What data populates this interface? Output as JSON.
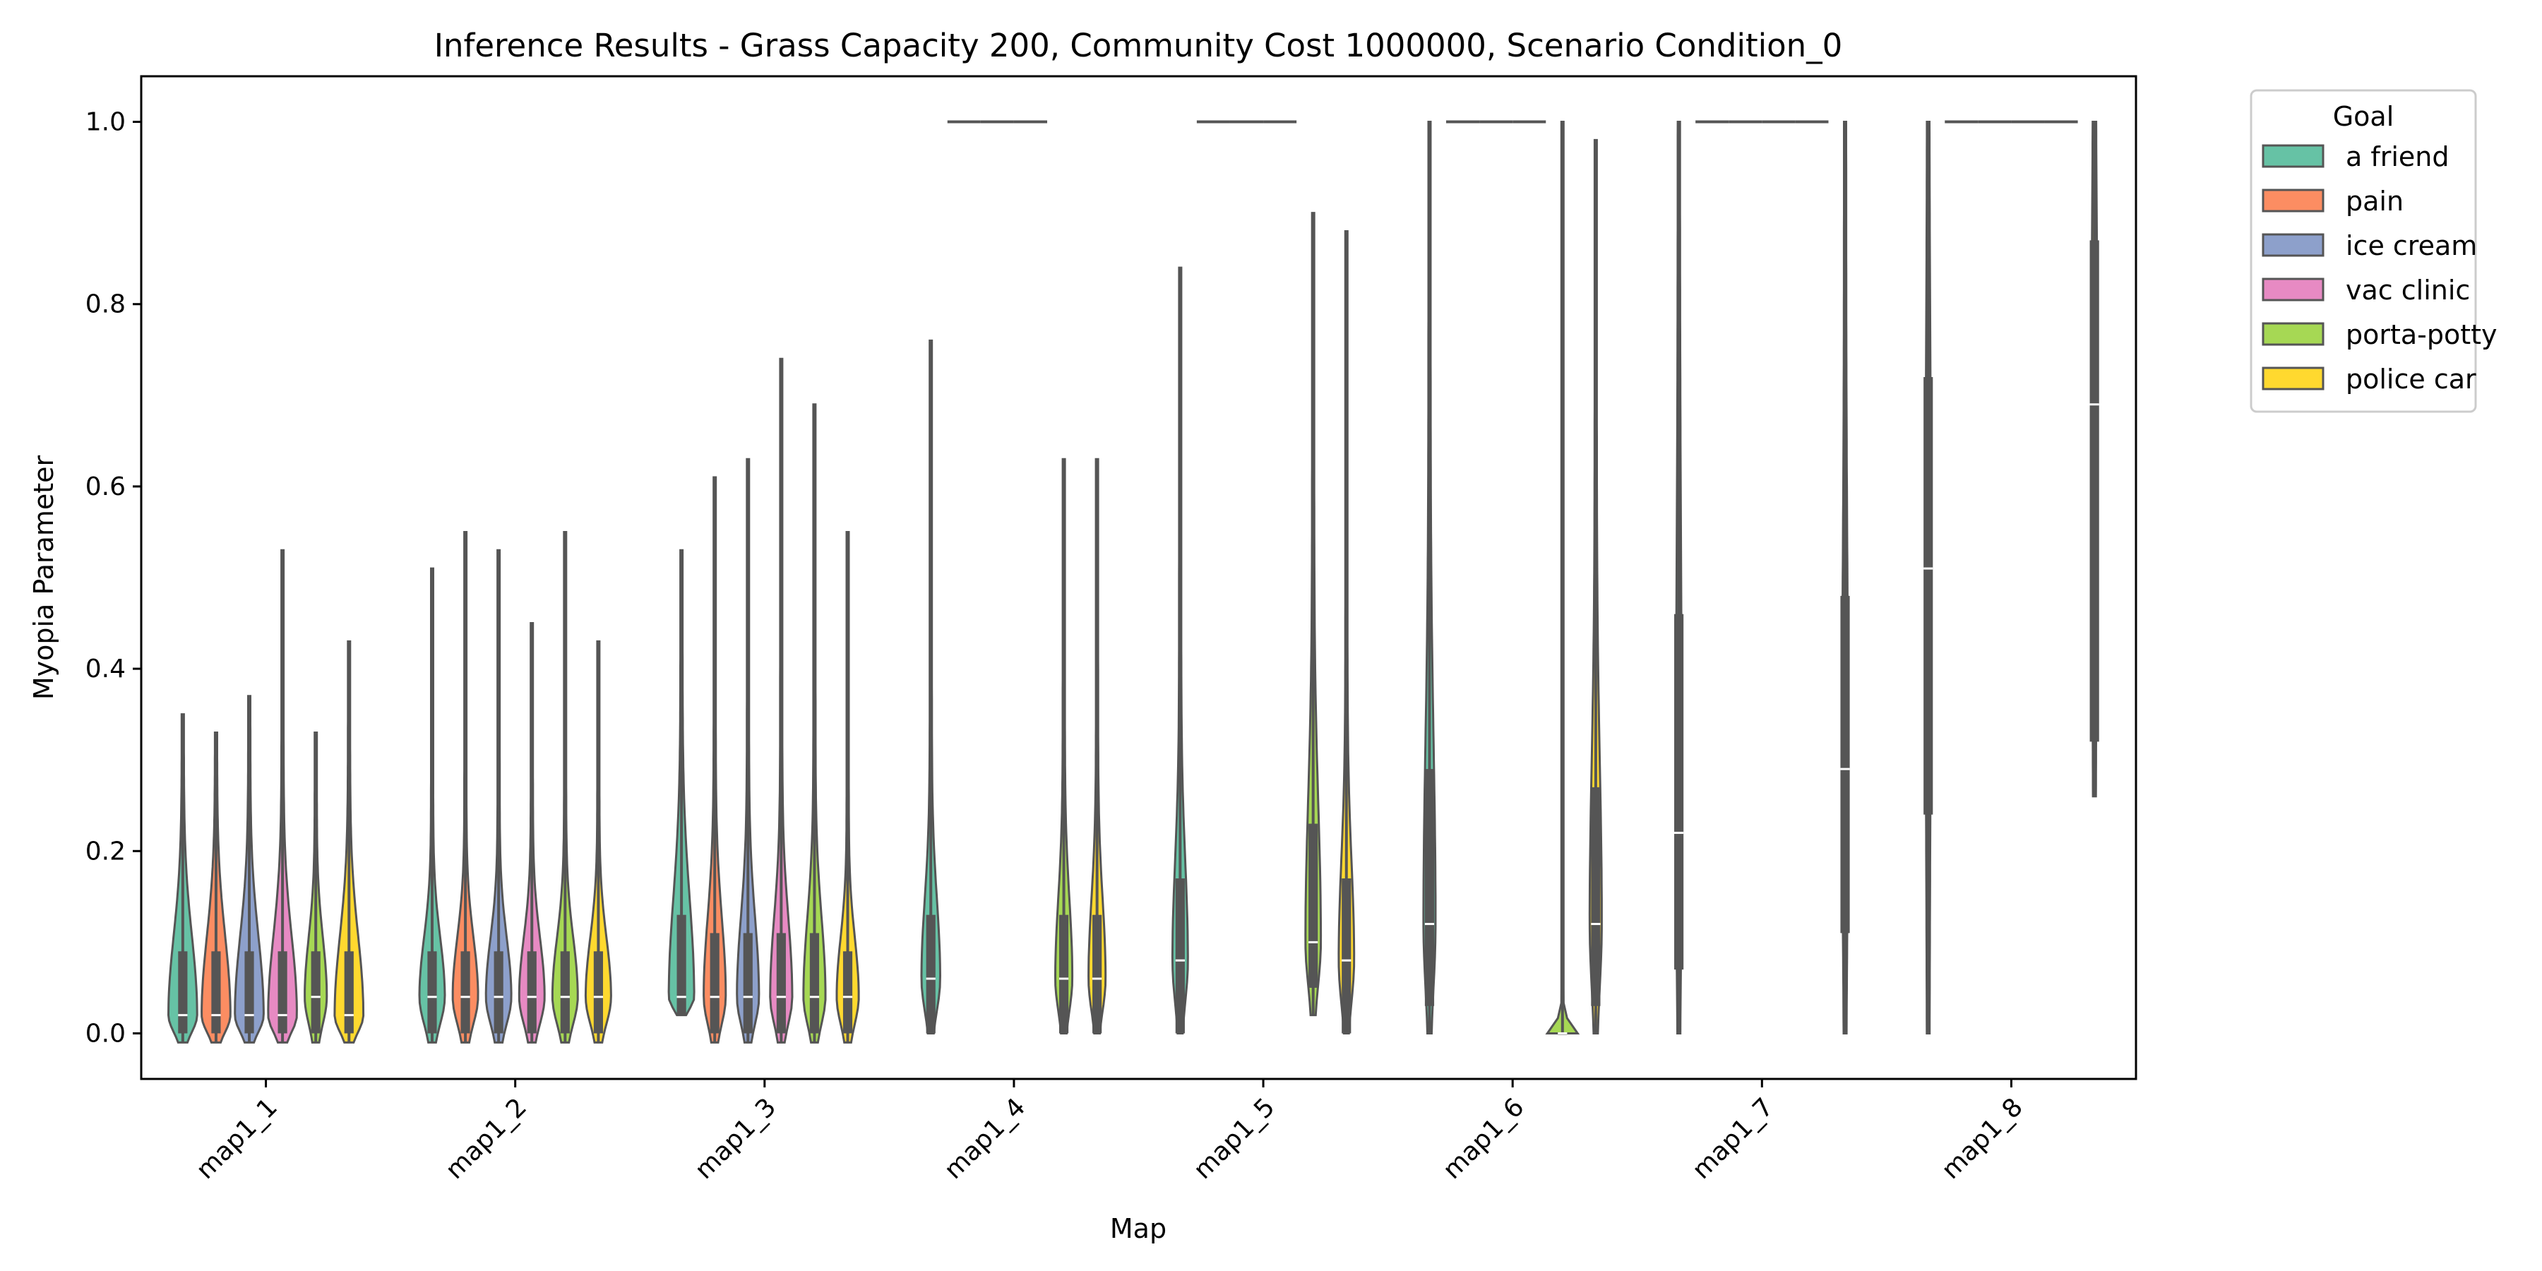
{
  "chart_data": {
    "type": "violin",
    "title": "Inference Results - Grass Capacity 200, Community Cost 1000000, Scenario Condition_0",
    "xlabel": "Map",
    "ylabel": "Myopia Parameter",
    "categories": [
      "map1_1",
      "map1_2",
      "map1_3",
      "map1_4",
      "map1_5",
      "map1_6",
      "map1_7",
      "map1_8"
    ],
    "y_ticks": [
      "0.0",
      "0.2",
      "0.4",
      "0.6",
      "0.8",
      "1.0"
    ],
    "y_tick_values": [
      0,
      0.2,
      0.4,
      0.6,
      0.8,
      1.0
    ],
    "ylim": [
      -0.05,
      1.05
    ],
    "grid": false,
    "legend": {
      "title": "Goal",
      "placement": "outside-top-right",
      "items": [
        {
          "label": "a friend",
          "color": "#66c2a5"
        },
        {
          "label": "pain",
          "color": "#fc8d62"
        },
        {
          "label": "ice cream",
          "color": "#8da0cb"
        },
        {
          "label": "vac clinic",
          "color": "#e78ac3"
        },
        {
          "label": "porta-potty",
          "color": "#a6d854"
        },
        {
          "label": "police car",
          "color": "#ffd92f"
        }
      ]
    },
    "goals": [
      "a friend",
      "pain",
      "ice cream",
      "vac clinic",
      "porta-potty",
      "police car"
    ],
    "colors": [
      "#66c2a5",
      "#fc8d62",
      "#8da0cb",
      "#e78ac3",
      "#a6d854",
      "#ffd92f"
    ],
    "violins": [
      {
        "map": "map1_1",
        "goal": "a friend",
        "min": -0.01,
        "max": 0.35,
        "q1": 0,
        "median": 0.02,
        "q3": 0.09,
        "width": 0.8
      },
      {
        "map": "map1_1",
        "goal": "pain",
        "min": -0.01,
        "max": 0.33,
        "q1": 0,
        "median": 0.02,
        "q3": 0.09,
        "width": 0.8
      },
      {
        "map": "map1_1",
        "goal": "ice cream",
        "min": -0.01,
        "max": 0.37,
        "q1": 0,
        "median": 0.02,
        "q3": 0.09,
        "width": 0.8
      },
      {
        "map": "map1_1",
        "goal": "vac clinic",
        "min": -0.01,
        "max": 0.53,
        "q1": 0,
        "median": 0.02,
        "q3": 0.09,
        "width": 0.8
      },
      {
        "map": "map1_1",
        "goal": "porta-potty",
        "min": -0.01,
        "max": 0.33,
        "q1": 0,
        "median": 0.04,
        "q3": 0.09,
        "width": 0.6
      },
      {
        "map": "map1_1",
        "goal": "police car",
        "min": -0.01,
        "max": 0.43,
        "q1": 0,
        "median": 0.02,
        "q3": 0.09,
        "width": 0.8
      },
      {
        "map": "map1_2",
        "goal": "a friend",
        "min": -0.01,
        "max": 0.51,
        "q1": 0,
        "median": 0.04,
        "q3": 0.09,
        "width": 0.7
      },
      {
        "map": "map1_2",
        "goal": "pain",
        "min": -0.01,
        "max": 0.55,
        "q1": 0,
        "median": 0.04,
        "q3": 0.09,
        "width": 0.7
      },
      {
        "map": "map1_2",
        "goal": "ice cream",
        "min": -0.01,
        "max": 0.53,
        "q1": 0,
        "median": 0.04,
        "q3": 0.09,
        "width": 0.7
      },
      {
        "map": "map1_2",
        "goal": "vac clinic",
        "min": -0.01,
        "max": 0.45,
        "q1": 0,
        "median": 0.04,
        "q3": 0.09,
        "width": 0.7
      },
      {
        "map": "map1_2",
        "goal": "porta-potty",
        "min": -0.01,
        "max": 0.55,
        "q1": 0,
        "median": 0.04,
        "q3": 0.09,
        "width": 0.7
      },
      {
        "map": "map1_2",
        "goal": "police car",
        "min": -0.01,
        "max": 0.43,
        "q1": 0,
        "median": 0.04,
        "q3": 0.09,
        "width": 0.7
      },
      {
        "map": "map1_3",
        "goal": "a friend",
        "min": 0.02,
        "max": 0.53,
        "q1": 0.02,
        "median": 0.04,
        "q3": 0.13,
        "width": 0.7
      },
      {
        "map": "map1_3",
        "goal": "pain",
        "min": -0.01,
        "max": 0.61,
        "q1": 0,
        "median": 0.04,
        "q3": 0.11,
        "width": 0.6
      },
      {
        "map": "map1_3",
        "goal": "ice cream",
        "min": -0.01,
        "max": 0.63,
        "q1": 0,
        "median": 0.04,
        "q3": 0.11,
        "width": 0.6
      },
      {
        "map": "map1_3",
        "goal": "vac clinic",
        "min": -0.01,
        "max": 0.74,
        "q1": 0,
        "median": 0.04,
        "q3": 0.11,
        "width": 0.6
      },
      {
        "map": "map1_3",
        "goal": "porta-potty",
        "min": -0.01,
        "max": 0.69,
        "q1": 0,
        "median": 0.04,
        "q3": 0.11,
        "width": 0.6
      },
      {
        "map": "map1_3",
        "goal": "police car",
        "min": -0.01,
        "max": 0.55,
        "q1": 0,
        "median": 0.04,
        "q3": 0.09,
        "width": 0.6
      },
      {
        "map": "map1_4",
        "goal": "a friend",
        "min": 0,
        "max": 0.76,
        "q1": 0,
        "median": 0.06,
        "q3": 0.13,
        "width": 0.5
      },
      {
        "map": "map1_4",
        "goal": "pain",
        "min": 1,
        "max": 1,
        "q1": 1,
        "median": 1,
        "q3": 1,
        "width": 0
      },
      {
        "map": "map1_4",
        "goal": "ice cream",
        "min": 1,
        "max": 1,
        "q1": 1,
        "median": 1,
        "q3": 1,
        "width": 0
      },
      {
        "map": "map1_4",
        "goal": "vac clinic",
        "min": 1,
        "max": 1,
        "q1": 1,
        "median": 1,
        "q3": 1,
        "width": 0
      },
      {
        "map": "map1_4",
        "goal": "porta-potty",
        "min": 0,
        "max": 0.63,
        "q1": 0,
        "median": 0.06,
        "q3": 0.13,
        "width": 0.45
      },
      {
        "map": "map1_4",
        "goal": "police car",
        "min": 0,
        "max": 0.63,
        "q1": 0,
        "median": 0.06,
        "q3": 0.13,
        "width": 0.45
      },
      {
        "map": "map1_5",
        "goal": "a friend",
        "min": 0,
        "max": 0.84,
        "q1": 0,
        "median": 0.08,
        "q3": 0.17,
        "width": 0.4
      },
      {
        "map": "map1_5",
        "goal": "pain",
        "min": 1,
        "max": 1,
        "q1": 1,
        "median": 1,
        "q3": 1,
        "width": 0
      },
      {
        "map": "map1_5",
        "goal": "ice cream",
        "min": 1,
        "max": 1,
        "q1": 1,
        "median": 1,
        "q3": 1,
        "width": 0
      },
      {
        "map": "map1_5",
        "goal": "vac clinic",
        "min": 1,
        "max": 1,
        "q1": 1,
        "median": 1,
        "q3": 1,
        "width": 0
      },
      {
        "map": "map1_5",
        "goal": "porta-potty",
        "min": 0.02,
        "max": 0.9,
        "q1": 0.05,
        "median": 0.1,
        "q3": 0.23,
        "width": 0.4
      },
      {
        "map": "map1_5",
        "goal": "police car",
        "min": 0,
        "max": 0.88,
        "q1": 0,
        "median": 0.08,
        "q3": 0.17,
        "width": 0.4
      },
      {
        "map": "map1_6",
        "goal": "a friend",
        "min": 0,
        "max": 1,
        "q1": 0.03,
        "median": 0.12,
        "q3": 0.29,
        "width": 0.3
      },
      {
        "map": "map1_6",
        "goal": "pain",
        "min": 1,
        "max": 1,
        "q1": 1,
        "median": 1,
        "q3": 1,
        "width": 0
      },
      {
        "map": "map1_6",
        "goal": "ice cream",
        "min": 1,
        "max": 1,
        "q1": 1,
        "median": 1,
        "q3": 1,
        "width": 0
      },
      {
        "map": "map1_6",
        "goal": "vac clinic",
        "min": 1,
        "max": 1,
        "q1": 1,
        "median": 1,
        "q3": 1,
        "width": 0
      },
      {
        "map": "map1_6",
        "goal": "porta-potty",
        "min": 0,
        "max": 1,
        "q1": 0,
        "median": 0,
        "q3": 0,
        "width": 0.85,
        "fill": true
      },
      {
        "map": "map1_6",
        "goal": "police car",
        "min": 0,
        "max": 0.98,
        "q1": 0.03,
        "median": 0.12,
        "q3": 0.27,
        "width": 0.3
      },
      {
        "map": "map1_7",
        "goal": "a friend",
        "min": 0,
        "max": 1,
        "q1": 0.07,
        "median": 0.22,
        "q3": 0.46,
        "width": 0.12
      },
      {
        "map": "map1_7",
        "goal": "pain",
        "min": 1,
        "max": 1,
        "q1": 1,
        "median": 1,
        "q3": 1,
        "width": 0
      },
      {
        "map": "map1_7",
        "goal": "ice cream",
        "min": 1,
        "max": 1,
        "q1": 1,
        "median": 1,
        "q3": 1,
        "width": 0
      },
      {
        "map": "map1_7",
        "goal": "vac clinic",
        "min": 1,
        "max": 1,
        "q1": 1,
        "median": 1,
        "q3": 1,
        "width": 0
      },
      {
        "map": "map1_7",
        "goal": "porta-potty",
        "min": 1,
        "max": 1,
        "q1": 1,
        "median": 1,
        "q3": 1,
        "width": 0
      },
      {
        "map": "map1_7",
        "goal": "police car",
        "min": 0,
        "max": 1,
        "q1": 0.11,
        "median": 0.29,
        "q3": 0.48,
        "width": 0.12
      },
      {
        "map": "map1_8",
        "goal": "a friend",
        "min": 0,
        "max": 1,
        "q1": 0.24,
        "median": 0.51,
        "q3": 0.72,
        "width": 0.1
      },
      {
        "map": "map1_8",
        "goal": "pain",
        "min": 1,
        "max": 1,
        "q1": 1,
        "median": 1,
        "q3": 1,
        "width": 0
      },
      {
        "map": "map1_8",
        "goal": "ice cream",
        "min": 1,
        "max": 1,
        "q1": 1,
        "median": 1,
        "q3": 1,
        "width": 0
      },
      {
        "map": "map1_8",
        "goal": "vac clinic",
        "min": 1,
        "max": 1,
        "q1": 1,
        "median": 1,
        "q3": 1,
        "width": 0
      },
      {
        "map": "map1_8",
        "goal": "porta-potty",
        "min": 1,
        "max": 1,
        "q1": 1,
        "median": 1,
        "q3": 1,
        "width": 0
      },
      {
        "map": "map1_8",
        "goal": "police car",
        "min": 0.26,
        "max": 1,
        "q1": 0.32,
        "median": 0.69,
        "q3": 0.87,
        "width": 0.12
      }
    ]
  }
}
